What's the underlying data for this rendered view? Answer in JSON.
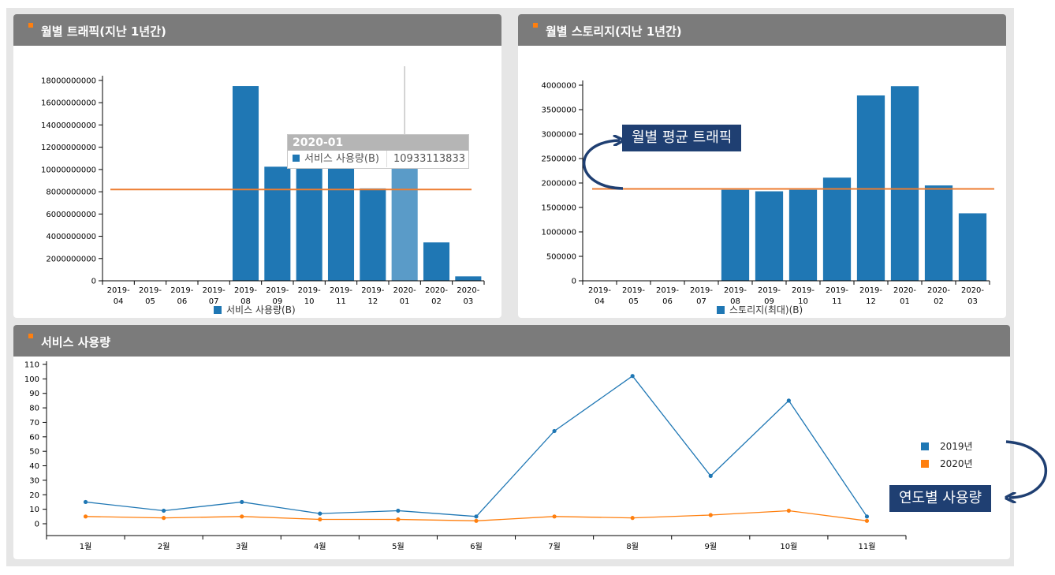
{
  "panels": {
    "traffic": {
      "title": "월별 트래픽(지난 1년간)",
      "legend": "서비스 사용량(B)",
      "tooltip": {
        "title": "2020-01",
        "label": "서비스 사용량(B)",
        "value": "10933113833"
      },
      "avg_line": 8200000000,
      "chart_data": {
        "type": "bar",
        "categories": [
          "2019-04",
          "2019-05",
          "2019-06",
          "2019-07",
          "2019-08",
          "2019-09",
          "2019-10",
          "2019-11",
          "2019-12",
          "2020-01",
          "2020-02",
          "2020-03"
        ],
        "values": [
          0,
          0,
          0,
          0,
          17500000000,
          10250000000,
          10500000000,
          10500000000,
          8300000000,
          10933113833,
          3450000000,
          400000000
        ],
        "ylim": [
          0,
          18000000000
        ],
        "yticks": [
          "0",
          "2000000000",
          "4000000000",
          "6000000000",
          "8000000000",
          "10000000000",
          "12000000000",
          "14000000000",
          "16000000000",
          "18000000000"
        ],
        "highlight_index": 9
      }
    },
    "storage": {
      "title": "월별 스토리지(지난 1년간)",
      "legend": "스토리지(최대)(B)",
      "avg_line": 1880000,
      "chart_data": {
        "type": "bar",
        "categories": [
          "2019-04",
          "2019-05",
          "2019-06",
          "2019-07",
          "2019-08",
          "2019-09",
          "2019-10",
          "2019-11",
          "2019-12",
          "2020-01",
          "2020-02",
          "2020-03"
        ],
        "values": [
          0,
          0,
          0,
          0,
          1860000,
          1830000,
          1860000,
          2110000,
          3790000,
          3980000,
          1950000,
          1380000
        ],
        "ylim": [
          0,
          4000000
        ],
        "yticks": [
          "0",
          "500000",
          "1000000",
          "1500000",
          "2000000",
          "2500000",
          "3000000",
          "3500000",
          "4000000"
        ]
      }
    },
    "usage": {
      "title": "서비스 사용량",
      "chart_data": {
        "type": "line",
        "categories": [
          "1월",
          "2월",
          "3월",
          "4월",
          "5월",
          "6월",
          "7월",
          "8월",
          "9월",
          "10월",
          "11월"
        ],
        "series": [
          {
            "name": "2019년",
            "color": "#1f77b4",
            "values": [
              15,
              9,
              15,
              7,
              9,
              5,
              64,
              102,
              33,
              85,
              5
            ]
          },
          {
            "name": "2020년",
            "color": "#ff7f0e",
            "values": [
              5,
              4,
              5,
              3,
              3,
              2,
              5,
              4,
              6,
              9,
              2
            ]
          }
        ],
        "ylim": [
          0,
          110
        ],
        "yticks": [
          "0",
          "10",
          "20",
          "30",
          "40",
          "50",
          "60",
          "70",
          "80",
          "90",
          "100",
          "110"
        ]
      }
    }
  },
  "callouts": {
    "avg_traffic": "월별 평균 트래픽",
    "yearly_usage": "연도별 사용량"
  },
  "colors": {
    "bar": "#1f77b4",
    "bar_highlight": "#5a9bc8",
    "avg": "#ed7d31",
    "header": "#7b7b7b",
    "callout": "#1f3f72"
  }
}
